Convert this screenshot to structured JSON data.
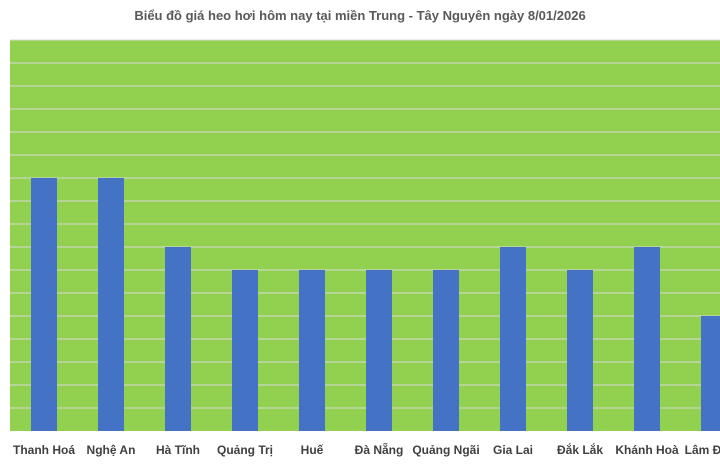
{
  "chart_data": {
    "type": "bar",
    "title": "Biểu đồ giá heo hơi hôm nay tại miền Trung - Tây Nguyên ngày 8/01/2026",
    "categories": [
      "Thanh Hoá",
      "Nghệ An",
      "Hà Tĩnh",
      "Quảng Trị",
      "Huế",
      "Đà Nẵng",
      "Quảng Ngãi",
      "Gia Lai",
      "Đắk Lắk",
      "Khánh Hoà",
      "Lâm Đồng"
    ],
    "values": [
      11,
      11,
      8,
      7,
      7,
      7,
      7,
      8,
      7,
      8,
      5
    ],
    "ylim": [
      0,
      17
    ],
    "xlabel": "",
    "ylabel": "",
    "grid": true,
    "colors": {
      "plot_background": "#92D050",
      "bar": "#4472C4",
      "grid": "#D9D9D9",
      "text": "#404040"
    }
  }
}
